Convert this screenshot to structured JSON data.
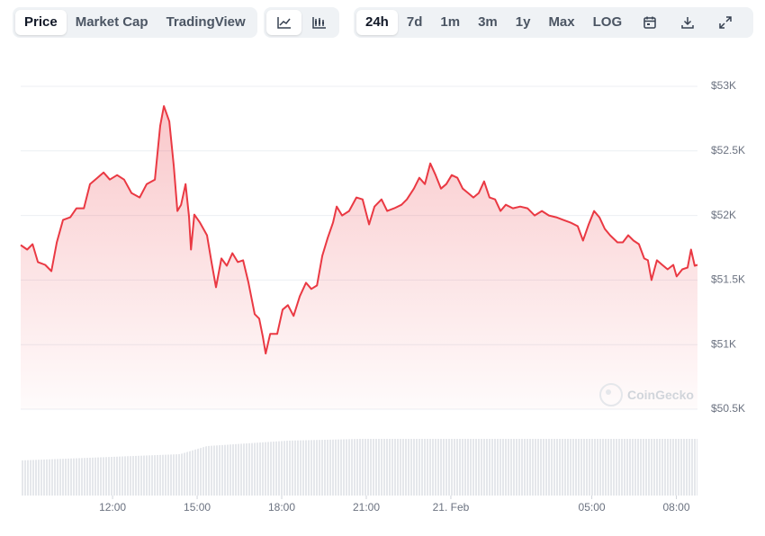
{
  "toolbar": {
    "views": [
      "Price",
      "Market Cap",
      "TradingView"
    ],
    "ranges": [
      "24h",
      "7d",
      "1m",
      "3m",
      "1y",
      "Max",
      "LOG"
    ]
  },
  "watermark": "CoinGecko",
  "chart_data": {
    "type": "line",
    "color": "#ea3943",
    "x": [
      8.74,
      8.97,
      9.16,
      9.35,
      9.61,
      9.83,
      10.02,
      10.24,
      10.5,
      10.72,
      10.98,
      11.2,
      11.46,
      11.68,
      11.9,
      12.16,
      12.41,
      12.67,
      12.96,
      13.21,
      13.5,
      13.69,
      13.82,
      14.01,
      14.17,
      14.3,
      14.43,
      14.59,
      14.71,
      14.78,
      14.9,
      15.1,
      15.35,
      15.51,
      15.67,
      15.86,
      16.05,
      16.25,
      16.44,
      16.63,
      16.82,
      17.04,
      17.2,
      17.33,
      17.43,
      17.59,
      17.84,
      18.03,
      18.22,
      18.42,
      18.64,
      18.86,
      19.05,
      19.25,
      19.44,
      19.63,
      19.82,
      19.95,
      20.14,
      20.39,
      20.65,
      20.87,
      21.1,
      21.29,
      21.54,
      21.74,
      21.99,
      22.25,
      22.44,
      22.69,
      22.88,
      23.08,
      23.27,
      23.46,
      23.65,
      23.84,
      24.03,
      24.23,
      24.42,
      24.61,
      24.8,
      24.99,
      25.18,
      25.37,
      25.57,
      25.76,
      25.95,
      26.2,
      26.46,
      26.72,
      26.97,
      27.23,
      27.48,
      27.74,
      27.99,
      28.25,
      28.5,
      28.69,
      28.89,
      29.08,
      29.27,
      29.46,
      29.65,
      29.91,
      30.1,
      30.29,
      30.48,
      30.67,
      30.86,
      30.99,
      31.12,
      31.31,
      31.5,
      31.69,
      31.89,
      32.01,
      32.21,
      32.4,
      32.52,
      32.65,
      32.75
    ],
    "values": [
      51771,
      51736,
      51778,
      51639,
      51618,
      51569,
      51792,
      51965,
      51986,
      52056,
      52056,
      52243,
      52292,
      52333,
      52278,
      52313,
      52278,
      52174,
      52139,
      52243,
      52278,
      52694,
      52847,
      52729,
      52382,
      52035,
      52083,
      52243,
      51993,
      51736,
      52007,
      51944,
      51847,
      51639,
      51444,
      51667,
      51611,
      51708,
      51639,
      51653,
      51479,
      51236,
      51201,
      51063,
      50931,
      51083,
      51083,
      51271,
      51306,
      51222,
      51375,
      51479,
      51431,
      51458,
      51688,
      51826,
      51944,
      52069,
      52000,
      52035,
      52139,
      52125,
      51931,
      52069,
      52125,
      52035,
      52056,
      52083,
      52125,
      52208,
      52292,
      52243,
      52403,
      52313,
      52208,
      52243,
      52313,
      52292,
      52208,
      52174,
      52139,
      52174,
      52264,
      52139,
      52125,
      52035,
      52083,
      52056,
      52069,
      52056,
      52000,
      52035,
      52000,
      51986,
      51965,
      51944,
      51917,
      51806,
      51931,
      52035,
      51986,
      51896,
      51847,
      51792,
      51792,
      51847,
      51806,
      51778,
      51667,
      51653,
      51500,
      51653,
      51618,
      51583,
      51618,
      51528,
      51583,
      51597,
      51736,
      51611,
      51618
    ],
    "xlim": [
      8.74,
      32.75
    ],
    "xticks": [
      {
        "value": 12,
        "label": "12:00"
      },
      {
        "value": 15,
        "label": "15:00"
      },
      {
        "value": 18,
        "label": "18:00"
      },
      {
        "value": 21,
        "label": "21:00"
      },
      {
        "value": 24,
        "label": "21. Feb"
      },
      {
        "value": 29,
        "label": "05:00"
      },
      {
        "value": 32,
        "label": "08:00"
      }
    ],
    "ylim": [
      50500,
      53000
    ],
    "yticks": [
      {
        "value": 53000,
        "label": "$53K"
      },
      {
        "value": 52500,
        "label": "$52.5K"
      },
      {
        "value": 52000,
        "label": "$52K"
      },
      {
        "value": 51500,
        "label": "$51.5K"
      },
      {
        "value": 51000,
        "label": "$51K"
      },
      {
        "value": 50500,
        "label": "$50.5K"
      }
    ],
    "grid": true
  }
}
